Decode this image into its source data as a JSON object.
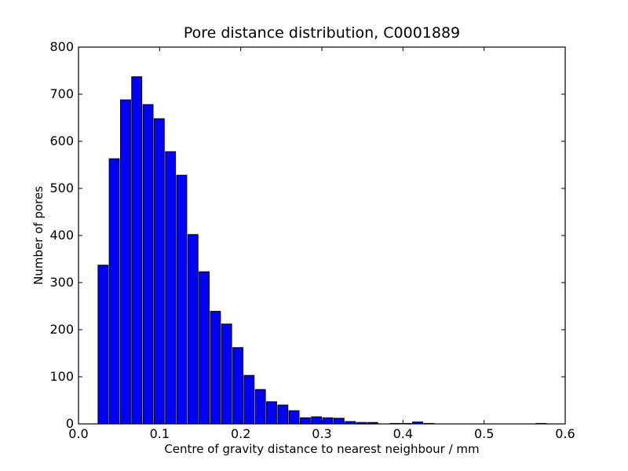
{
  "chart_data": {
    "type": "bar",
    "title": "Pore distance distribution, C0001889",
    "xlabel": "Centre of gravity distance to nearest neighbour / mm",
    "ylabel": "Number of pores",
    "xlim": [
      0.0,
      0.6
    ],
    "ylim": [
      0,
      800
    ],
    "xticks": [
      0.0,
      0.1,
      0.2,
      0.3,
      0.4,
      0.5,
      0.6
    ],
    "xtick_labels": [
      "0.0",
      "0.1",
      "0.2",
      "0.3",
      "0.4",
      "0.5",
      "0.6"
    ],
    "yticks": [
      0,
      100,
      200,
      300,
      400,
      500,
      600,
      700,
      800
    ],
    "ytick_labels": [
      "0",
      "100",
      "200",
      "300",
      "400",
      "500",
      "600",
      "700",
      "800"
    ],
    "bin_width": 0.0138,
    "bar_fill_ratio": 0.9,
    "bins": [
      {
        "x": 0.0241,
        "value": 337
      },
      {
        "x": 0.0379,
        "value": 563
      },
      {
        "x": 0.0518,
        "value": 688
      },
      {
        "x": 0.0656,
        "value": 737
      },
      {
        "x": 0.0795,
        "value": 678
      },
      {
        "x": 0.0933,
        "value": 648
      },
      {
        "x": 0.1072,
        "value": 578
      },
      {
        "x": 0.121,
        "value": 528
      },
      {
        "x": 0.1349,
        "value": 402
      },
      {
        "x": 0.1487,
        "value": 323
      },
      {
        "x": 0.1626,
        "value": 239
      },
      {
        "x": 0.1764,
        "value": 212
      },
      {
        "x": 0.1903,
        "value": 162
      },
      {
        "x": 0.2041,
        "value": 103
      },
      {
        "x": 0.218,
        "value": 73
      },
      {
        "x": 0.2318,
        "value": 47
      },
      {
        "x": 0.2457,
        "value": 40
      },
      {
        "x": 0.2595,
        "value": 28
      },
      {
        "x": 0.2734,
        "value": 13
      },
      {
        "x": 0.2872,
        "value": 15
      },
      {
        "x": 0.3011,
        "value": 13
      },
      {
        "x": 0.3149,
        "value": 12
      },
      {
        "x": 0.3288,
        "value": 5
      },
      {
        "x": 0.3426,
        "value": 3
      },
      {
        "x": 0.3565,
        "value": 3
      },
      {
        "x": 0.3703,
        "value": 0
      },
      {
        "x": 0.3842,
        "value": 1
      },
      {
        "x": 0.398,
        "value": 1
      },
      {
        "x": 0.4119,
        "value": 4
      },
      {
        "x": 0.4257,
        "value": 1
      },
      {
        "x": 0.4396,
        "value": 0
      },
      {
        "x": 0.4534,
        "value": 0
      },
      {
        "x": 0.4673,
        "value": 0
      },
      {
        "x": 0.4811,
        "value": 0
      },
      {
        "x": 0.495,
        "value": 0
      },
      {
        "x": 0.5088,
        "value": 0
      },
      {
        "x": 0.5227,
        "value": 0
      },
      {
        "x": 0.5365,
        "value": 0
      },
      {
        "x": 0.5504,
        "value": 0
      },
      {
        "x": 0.5642,
        "value": 1
      }
    ],
    "bar_color": "#0000ff",
    "edge_color": "#000000",
    "grid": false
  }
}
